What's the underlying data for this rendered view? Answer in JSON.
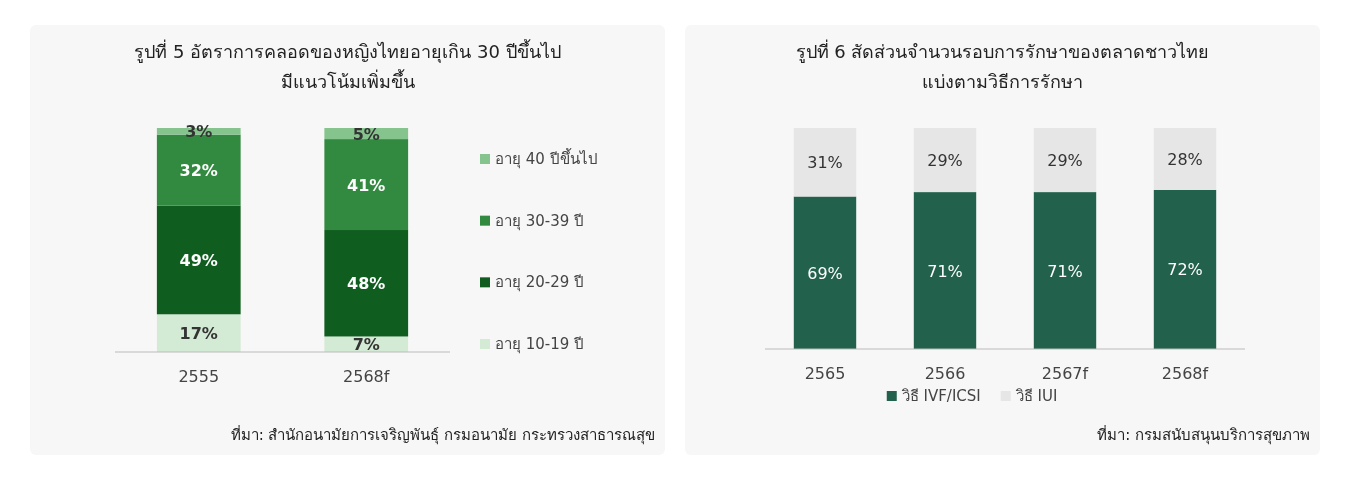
{
  "chart_data": [
    {
      "type": "bar",
      "stacked": true,
      "title": "รูปที่ 5 อัตราการคลอดของหญิงไทยอายุเกิน 30 ปีขึ้นไป\nมีแนวโน้มเพิ่มขึ้น",
      "categories": [
        "2555",
        "2568f"
      ],
      "legend": "right",
      "series": [
        {
          "name": "อายุ 10-19 ปี",
          "color": "#d3ebd5",
          "values": [
            17,
            7
          ],
          "value_labels": [
            "17%",
            "7%"
          ]
        },
        {
          "name": "อายุ 20-29 ปี",
          "color": "#0f5e1f",
          "values": [
            49,
            48
          ],
          "value_labels": [
            "49%",
            "48%"
          ]
        },
        {
          "name": "อายุ 30-39 ปี",
          "color": "#318a3f",
          "values": [
            32,
            41
          ],
          "value_labels": [
            "32%",
            "41%"
          ]
        },
        {
          "name": "อายุ 40 ปีขึ้นไป",
          "color": "#86c48e",
          "values": [
            3,
            5
          ],
          "value_labels": [
            "3%",
            "5%"
          ]
        }
      ],
      "annotations": [
        "ที่มา: สำนักอนามัยการเจริญพันธุ์ กรมอนามัย กระทรวงสาธารณสุข"
      ]
    },
    {
      "type": "bar",
      "stacked": true,
      "title": "รูปที่ 6 สัดส่วนจำนวนรอบการรักษาของตลาดชาวไทย\nแบ่งตามวิธีการรักษา",
      "categories": [
        "2565",
        "2566",
        "2567f",
        "2568f"
      ],
      "legend": "bottom",
      "series": [
        {
          "name": "วิธี IVF/ICSI",
          "color": "#22614c",
          "values": [
            69,
            71,
            71,
            72
          ],
          "value_labels": [
            "69%",
            "71%",
            "71%",
            "72%"
          ]
        },
        {
          "name": "วิธี IUI",
          "color": "#e6e6e6",
          "values": [
            31,
            29,
            29,
            28
          ],
          "value_labels": [
            "31%",
            "29%",
            "29%",
            "28%"
          ]
        }
      ],
      "annotations": [
        "ที่มา: กรมสนับสนุนบริการสุขภาพ"
      ]
    }
  ]
}
